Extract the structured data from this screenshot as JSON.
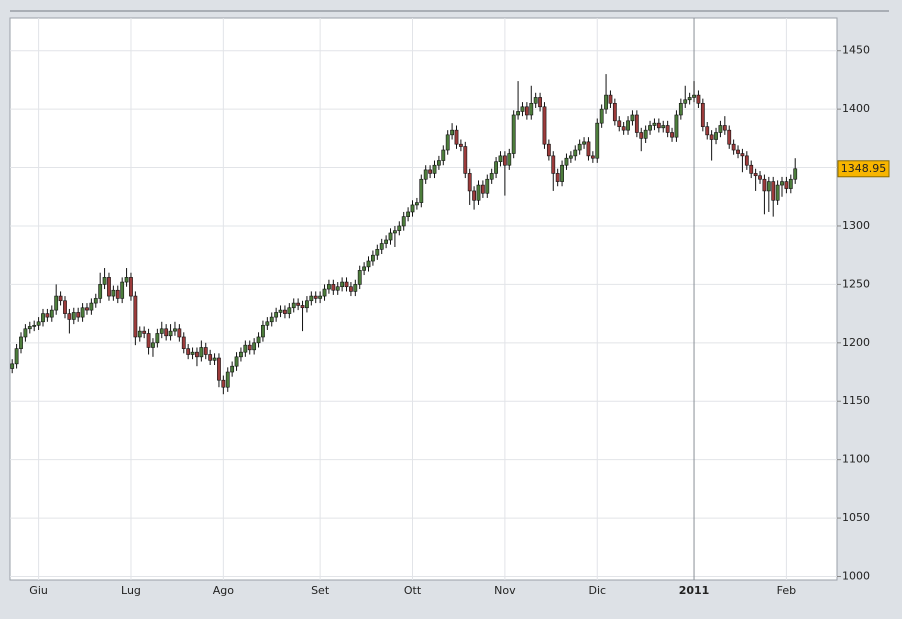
{
  "chart_data": {
    "type": "candlestick",
    "categories": [
      null,
      null,
      null,
      null,
      null,
      null,
      "Giu",
      null,
      null,
      null,
      null,
      null,
      null,
      null,
      null,
      null,
      null,
      null,
      null,
      null,
      null,
      null,
      null,
      null,
      null,
      null,
      null,
      "Lug",
      null,
      null,
      null,
      null,
      null,
      null,
      null,
      null,
      null,
      null,
      null,
      null,
      null,
      null,
      null,
      null,
      null,
      null,
      null,
      null,
      "Ago",
      null,
      null,
      null,
      null,
      null,
      null,
      null,
      null,
      null,
      null,
      null,
      null,
      null,
      null,
      null,
      null,
      null,
      null,
      null,
      null,
      null,
      "Set",
      null,
      null,
      null,
      null,
      null,
      null,
      null,
      null,
      null,
      null,
      null,
      null,
      null,
      null,
      null,
      null,
      null,
      null,
      null,
      null,
      "Ott",
      null,
      null,
      null,
      null,
      null,
      null,
      null,
      null,
      null,
      null,
      null,
      null,
      null,
      null,
      null,
      null,
      null,
      null,
      null,
      null,
      "Nov",
      null,
      null,
      null,
      null,
      null,
      null,
      null,
      null,
      null,
      null,
      null,
      null,
      null,
      null,
      null,
      null,
      null,
      null,
      null,
      null,
      "Dic",
      null,
      null,
      null,
      null,
      null,
      null,
      null,
      null,
      null,
      null,
      null,
      null,
      null,
      null,
      null,
      null,
      null,
      null,
      null,
      null,
      null,
      "2011",
      null,
      null,
      null,
      null,
      null,
      null,
      null,
      null,
      null,
      null,
      null,
      null,
      null,
      null,
      null,
      null,
      null,
      null,
      null,
      null,
      "Feb",
      null,
      null
    ],
    "ohlc": [
      [
        1178,
        1186,
        1174,
        1182
      ],
      [
        1182,
        1199,
        1178,
        1195
      ],
      [
        1195,
        1209,
        1191,
        1205
      ],
      [
        1205,
        1216,
        1201,
        1212
      ],
      [
        1212,
        1218,
        1208,
        1214
      ],
      [
        1214,
        1219,
        1210,
        1215
      ],
      [
        1215,
        1222,
        1211,
        1218
      ],
      [
        1218,
        1229,
        1214,
        1225
      ],
      [
        1225,
        1229,
        1218,
        1222
      ],
      [
        1222,
        1232,
        1218,
        1228
      ],
      [
        1228,
        1250,
        1224,
        1240
      ],
      [
        1240,
        1244,
        1232,
        1236
      ],
      [
        1236,
        1240,
        1221,
        1225
      ],
      [
        1225,
        1229,
        1208,
        1220
      ],
      [
        1220,
        1230,
        1216,
        1226
      ],
      [
        1226,
        1230,
        1218,
        1222
      ],
      [
        1222,
        1234,
        1218,
        1230
      ],
      [
        1230,
        1234,
        1224,
        1228
      ],
      [
        1228,
        1238,
        1224,
        1234
      ],
      [
        1234,
        1242,
        1230,
        1238
      ],
      [
        1238,
        1260,
        1234,
        1250
      ],
      [
        1250,
        1264,
        1246,
        1256
      ],
      [
        1256,
        1260,
        1236,
        1240
      ],
      [
        1240,
        1249,
        1236,
        1245
      ],
      [
        1245,
        1249,
        1234,
        1238
      ],
      [
        1238,
        1256,
        1234,
        1252
      ],
      [
        1252,
        1264,
        1248,
        1256
      ],
      [
        1256,
        1260,
        1236,
        1240
      ],
      [
        1240,
        1244,
        1198,
        1205
      ],
      [
        1205,
        1214,
        1201,
        1210
      ],
      [
        1210,
        1214,
        1204,
        1208
      ],
      [
        1208,
        1212,
        1190,
        1196
      ],
      [
        1196,
        1204,
        1188,
        1200
      ],
      [
        1200,
        1212,
        1196,
        1208
      ],
      [
        1208,
        1218,
        1204,
        1212
      ],
      [
        1212,
        1216,
        1202,
        1206
      ],
      [
        1206,
        1216,
        1202,
        1210
      ],
      [
        1210,
        1218,
        1206,
        1212
      ],
      [
        1212,
        1216,
        1201,
        1205
      ],
      [
        1205,
        1209,
        1191,
        1195
      ],
      [
        1195,
        1199,
        1186,
        1190
      ],
      [
        1190,
        1196,
        1186,
        1192
      ],
      [
        1192,
        1196,
        1180,
        1188
      ],
      [
        1188,
        1202,
        1184,
        1196
      ],
      [
        1196,
        1200,
        1186,
        1190
      ],
      [
        1190,
        1194,
        1181,
        1185
      ],
      [
        1185,
        1191,
        1181,
        1187
      ],
      [
        1187,
        1191,
        1162,
        1168
      ],
      [
        1168,
        1172,
        1156,
        1162
      ],
      [
        1162,
        1179,
        1158,
        1175
      ],
      [
        1175,
        1184,
        1171,
        1180
      ],
      [
        1180,
        1192,
        1176,
        1188
      ],
      [
        1188,
        1196,
        1184,
        1192
      ],
      [
        1192,
        1202,
        1188,
        1198
      ],
      [
        1198,
        1202,
        1190,
        1194
      ],
      [
        1194,
        1204,
        1190,
        1200
      ],
      [
        1200,
        1209,
        1196,
        1205
      ],
      [
        1205,
        1219,
        1201,
        1215
      ],
      [
        1215,
        1222,
        1211,
        1218
      ],
      [
        1218,
        1226,
        1214,
        1222
      ],
      [
        1222,
        1230,
        1218,
        1226
      ],
      [
        1226,
        1232,
        1222,
        1228
      ],
      [
        1228,
        1232,
        1221,
        1225
      ],
      [
        1225,
        1234,
        1221,
        1230
      ],
      [
        1230,
        1238,
        1226,
        1234
      ],
      [
        1234,
        1238,
        1228,
        1232
      ],
      [
        1232,
        1236,
        1210,
        1230
      ],
      [
        1230,
        1240,
        1226,
        1236
      ],
      [
        1236,
        1244,
        1232,
        1240
      ],
      [
        1240,
        1244,
        1234,
        1238
      ],
      [
        1238,
        1244,
        1234,
        1240
      ],
      [
        1240,
        1250,
        1236,
        1246
      ],
      [
        1246,
        1254,
        1242,
        1250
      ],
      [
        1250,
        1254,
        1241,
        1245
      ],
      [
        1245,
        1252,
        1241,
        1248
      ],
      [
        1248,
        1256,
        1244,
        1252
      ],
      [
        1252,
        1256,
        1244,
        1248
      ],
      [
        1248,
        1252,
        1240,
        1244
      ],
      [
        1244,
        1254,
        1240,
        1250
      ],
      [
        1250,
        1266,
        1246,
        1262
      ],
      [
        1262,
        1269,
        1258,
        1265
      ],
      [
        1265,
        1274,
        1261,
        1270
      ],
      [
        1270,
        1279,
        1266,
        1275
      ],
      [
        1275,
        1284,
        1271,
        1280
      ],
      [
        1280,
        1289,
        1276,
        1285
      ],
      [
        1285,
        1292,
        1281,
        1288
      ],
      [
        1288,
        1298,
        1284,
        1294
      ],
      [
        1294,
        1300,
        1282,
        1296
      ],
      [
        1296,
        1304,
        1292,
        1300
      ],
      [
        1300,
        1312,
        1296,
        1308
      ],
      [
        1308,
        1316,
        1304,
        1312
      ],
      [
        1312,
        1322,
        1308,
        1318
      ],
      [
        1318,
        1324,
        1314,
        1320
      ],
      [
        1320,
        1344,
        1316,
        1340
      ],
      [
        1340,
        1352,
        1336,
        1348
      ],
      [
        1348,
        1352,
        1341,
        1345
      ],
      [
        1345,
        1356,
        1341,
        1352
      ],
      [
        1352,
        1360,
        1348,
        1356
      ],
      [
        1356,
        1369,
        1352,
        1365
      ],
      [
        1365,
        1382,
        1361,
        1378
      ],
      [
        1378,
        1388,
        1374,
        1382
      ],
      [
        1382,
        1386,
        1366,
        1370
      ],
      [
        1370,
        1374,
        1364,
        1368
      ],
      [
        1368,
        1372,
        1341,
        1345
      ],
      [
        1345,
        1349,
        1318,
        1330
      ],
      [
        1330,
        1334,
        1314,
        1322
      ],
      [
        1322,
        1339,
        1318,
        1335
      ],
      [
        1335,
        1339,
        1324,
        1328
      ],
      [
        1328,
        1344,
        1324,
        1340
      ],
      [
        1340,
        1349,
        1336,
        1345
      ],
      [
        1345,
        1359,
        1341,
        1355
      ],
      [
        1355,
        1364,
        1351,
        1360
      ],
      [
        1360,
        1364,
        1326,
        1352
      ],
      [
        1352,
        1366,
        1348,
        1362
      ],
      [
        1362,
        1399,
        1358,
        1395
      ],
      [
        1395,
        1424,
        1391,
        1398
      ],
      [
        1398,
        1406,
        1394,
        1402
      ],
      [
        1402,
        1406,
        1391,
        1395
      ],
      [
        1395,
        1420,
        1391,
        1405
      ],
      [
        1405,
        1414,
        1401,
        1410
      ],
      [
        1410,
        1414,
        1398,
        1402
      ],
      [
        1402,
        1406,
        1366,
        1370
      ],
      [
        1370,
        1374,
        1356,
        1360
      ],
      [
        1360,
        1364,
        1330,
        1345
      ],
      [
        1345,
        1349,
        1334,
        1338
      ],
      [
        1338,
        1356,
        1334,
        1352
      ],
      [
        1352,
        1362,
        1348,
        1358
      ],
      [
        1358,
        1364,
        1354,
        1360
      ],
      [
        1360,
        1369,
        1356,
        1365
      ],
      [
        1365,
        1374,
        1361,
        1370
      ],
      [
        1370,
        1376,
        1366,
        1372
      ],
      [
        1372,
        1376,
        1356,
        1360
      ],
      [
        1360,
        1364,
        1354,
        1358
      ],
      [
        1358,
        1392,
        1354,
        1388
      ],
      [
        1388,
        1404,
        1384,
        1400
      ],
      [
        1400,
        1430,
        1396,
        1412
      ],
      [
        1412,
        1416,
        1401,
        1405
      ],
      [
        1405,
        1409,
        1386,
        1390
      ],
      [
        1390,
        1394,
        1381,
        1385
      ],
      [
        1385,
        1389,
        1378,
        1382
      ],
      [
        1382,
        1394,
        1378,
        1390
      ],
      [
        1390,
        1399,
        1386,
        1395
      ],
      [
        1395,
        1399,
        1376,
        1380
      ],
      [
        1380,
        1384,
        1364,
        1375
      ],
      [
        1375,
        1386,
        1371,
        1382
      ],
      [
        1382,
        1390,
        1378,
        1386
      ],
      [
        1386,
        1392,
        1382,
        1388
      ],
      [
        1388,
        1392,
        1380,
        1384
      ],
      [
        1384,
        1390,
        1380,
        1386
      ],
      [
        1386,
        1390,
        1376,
        1380
      ],
      [
        1380,
        1384,
        1372,
        1376
      ],
      [
        1376,
        1399,
        1372,
        1395
      ],
      [
        1395,
        1409,
        1391,
        1405
      ],
      [
        1405,
        1420,
        1401,
        1408
      ],
      [
        1408,
        1414,
        1404,
        1410
      ],
      [
        1410,
        1424,
        1406,
        1412
      ],
      [
        1412,
        1416,
        1401,
        1405
      ],
      [
        1405,
        1409,
        1381,
        1385
      ],
      [
        1385,
        1389,
        1374,
        1378
      ],
      [
        1378,
        1382,
        1356,
        1374
      ],
      [
        1374,
        1384,
        1370,
        1380
      ],
      [
        1380,
        1390,
        1376,
        1386
      ],
      [
        1386,
        1394,
        1378,
        1382
      ],
      [
        1382,
        1386,
        1366,
        1370
      ],
      [
        1370,
        1374,
        1361,
        1365
      ],
      [
        1365,
        1369,
        1358,
        1362
      ],
      [
        1362,
        1366,
        1346,
        1360
      ],
      [
        1360,
        1364,
        1348,
        1352
      ],
      [
        1352,
        1356,
        1341,
        1345
      ],
      [
        1345,
        1349,
        1330,
        1343
      ],
      [
        1343,
        1347,
        1336,
        1340
      ],
      [
        1340,
        1344,
        1310,
        1330
      ],
      [
        1330,
        1342,
        1312,
        1338
      ],
      [
        1338,
        1342,
        1308,
        1322
      ],
      [
        1322,
        1339,
        1318,
        1335
      ],
      [
        1335,
        1342,
        1325,
        1338
      ],
      [
        1338,
        1342,
        1328,
        1332
      ],
      [
        1332,
        1344,
        1328,
        1340
      ],
      [
        1340,
        1358,
        1336,
        1348.95
      ]
    ],
    "up_color": "#4d7d3c",
    "down_color": "#9c3b3b",
    "wick_color": "#111111",
    "last_value_label": "1348.95",
    "last_value_color": "#f7b500",
    "ylim": [
      997,
      1478
    ],
    "yticks": [
      1000,
      1050,
      1100,
      1150,
      1200,
      1250,
      1300,
      1350,
      1400,
      1450
    ],
    "grid": true
  }
}
